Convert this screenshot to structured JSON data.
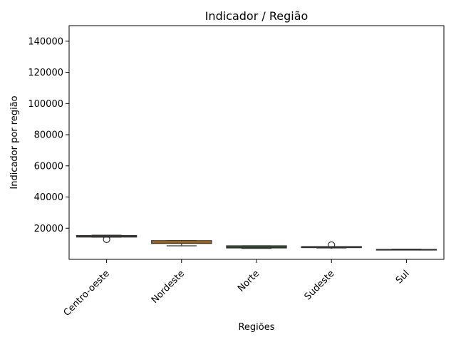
{
  "chart_data": {
    "type": "box",
    "title": "Indicador / Região",
    "xlabel": "Regiões",
    "ylabel": "Indicador por região",
    "ylim": [
      0,
      150000
    ],
    "yticks": [
      20000,
      40000,
      60000,
      80000,
      100000,
      120000,
      140000
    ],
    "ytick_labels": [
      "20000",
      "40000",
      "60000",
      "80000",
      "100000",
      "120000",
      "140000"
    ],
    "grid": false,
    "categories": [
      "Centro-oeste",
      "Nordeste",
      "Norte",
      "Sudeste",
      "Sul"
    ],
    "boxes": [
      {
        "category": "Centro-oeste",
        "color": "#8b4513",
        "whisker_low": 14200,
        "q1": 14300,
        "median": 14900,
        "q3": 15300,
        "whisker_high": 15500,
        "outliers": [
          12800
        ]
      },
      {
        "category": "Nordeste",
        "color": "#ff8c00",
        "whisker_low": 8700,
        "q1": 10200,
        "median": 11000,
        "q3": 12000,
        "whisker_high": 12000,
        "outliers": []
      },
      {
        "category": "Norte",
        "color": "#2e6b2e",
        "whisker_low": 7000,
        "q1": 7300,
        "median": 7800,
        "q3": 8700,
        "whisker_high": 8700,
        "outliers": []
      },
      {
        "category": "Sudeste",
        "color": "#556b2f",
        "whisker_low": 7300,
        "q1": 7500,
        "median": 7800,
        "q3": 8200,
        "whisker_high": 8200,
        "outliers": [
          9200
        ]
      },
      {
        "category": "Sul",
        "color": "#1e5a8a",
        "whisker_low": 6000,
        "q1": 6100,
        "median": 6300,
        "q3": 6400,
        "whisker_high": 6500,
        "outliers": []
      }
    ]
  }
}
